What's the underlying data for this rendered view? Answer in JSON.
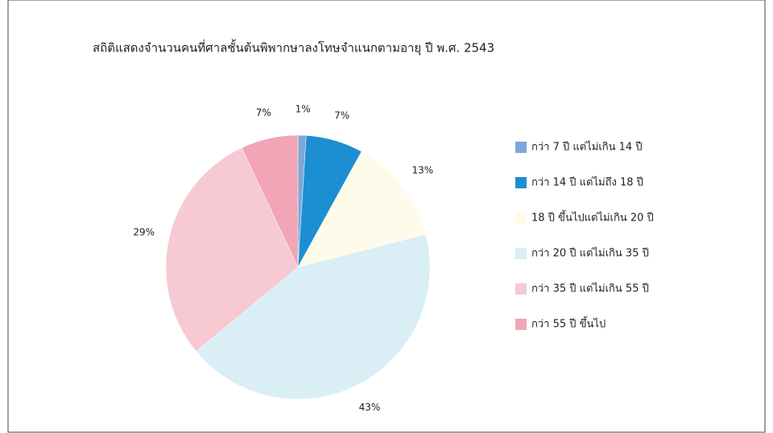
{
  "chart_data": {
    "type": "pie",
    "title": "สถิติแสดงจำนวนคนที่ศาลชั้นต้นพิพากษาลงโทษจำแนกตามอายุ ปี พ.ศ. 2543",
    "categories": [
      "กว่า 7 ปี แต่ไม่เกิน 14 ปี",
      "กว่า 14 ปี แต่ไม่ถึง 18 ปี",
      "18 ปี ขึ้นไปแต่ไม่เกิน 20 ปี",
      "กว่า 20 ปี แต่ไม่เกิน 35 ปี",
      "กว่า 35 ปี แต่ไม่เกิน 55 ปี",
      "กว่า 55 ปี ขึ้นไป"
    ],
    "values": [
      1,
      7,
      13,
      43,
      29,
      7
    ],
    "value_labels": [
      "1%",
      "7%",
      "13%",
      "43%",
      "29%",
      "7%"
    ],
    "colors": [
      "#7fa6d6",
      "#1b8fd2",
      "#fffbea",
      "#d9eef5",
      "#f6c9d3",
      "#f2a5b6"
    ],
    "legend": "right"
  }
}
